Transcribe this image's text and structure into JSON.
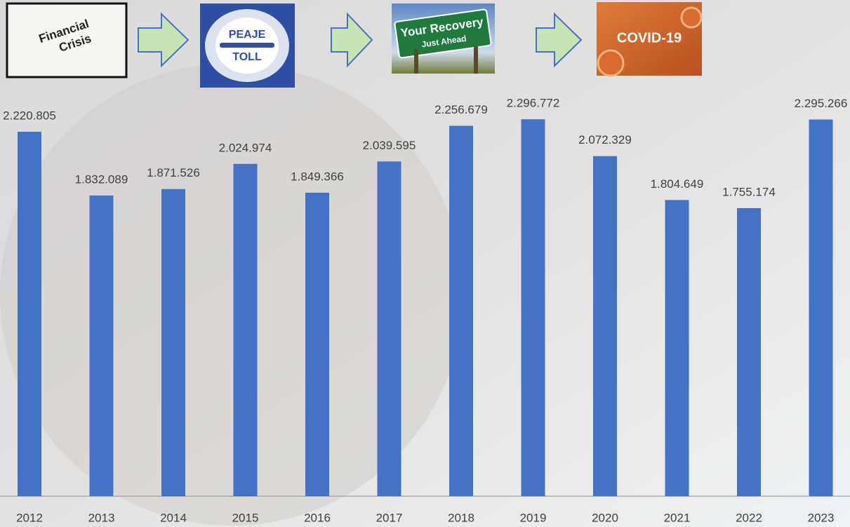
{
  "chart_data": {
    "type": "bar",
    "categories": [
      "2012",
      "2013",
      "2014",
      "2015",
      "2016",
      "2017",
      "2018",
      "2019",
      "2020",
      "2021",
      "2022",
      "2023"
    ],
    "values": [
      2220805,
      1832089,
      1871526,
      2024974,
      1849366,
      2039595,
      2256679,
      2296772,
      2072329,
      1804649,
      1755174,
      2295266
    ],
    "value_labels": [
      "2.220.805",
      "1.832.089",
      "1.871.526",
      "2.024.974",
      "1.849.366",
      "2.039.595",
      "2.256.679",
      "2.296.772",
      "2.072.329",
      "1.804.649",
      "1.755.174",
      "2.295.266"
    ],
    "color": "#4472c4",
    "ylim": [
      0,
      2400000
    ]
  },
  "banner": {
    "financial_crisis": [
      "Financial",
      "Crisis"
    ],
    "toll_sign": [
      "PEAJE",
      "TOLL"
    ],
    "recovery_sign": [
      "Your Recovery",
      "Just Ahead"
    ],
    "covid": "COVID-19"
  }
}
